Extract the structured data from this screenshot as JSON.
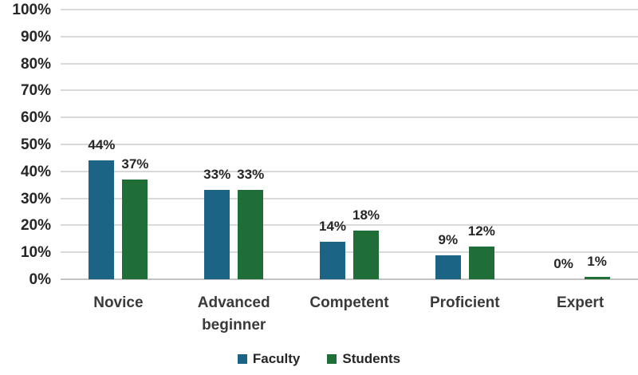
{
  "chart_data": {
    "type": "bar",
    "title": "",
    "xlabel": "",
    "ylabel": "",
    "categories": [
      "Novice",
      "Advanced beginner",
      "Competent",
      "Proficient",
      "Expert"
    ],
    "series": [
      {
        "name": "Faculty",
        "color": "#1b6486",
        "values": [
          44,
          33,
          14,
          9,
          0
        ],
        "labels": [
          "44%",
          "33%",
          "14%",
          "9%",
          "0%"
        ]
      },
      {
        "name": "Students",
        "color": "#1f6e38",
        "values": [
          37,
          33,
          18,
          12,
          1
        ],
        "labels": [
          "37%",
          "33%",
          "18%",
          "12%",
          "1%"
        ]
      }
    ],
    "y_axis": {
      "min": 0,
      "max": 100,
      "tick_step": 10,
      "tick_labels": [
        "0%",
        "10%",
        "20%",
        "30%",
        "40%",
        "50%",
        "60%",
        "70%",
        "80%",
        "90%",
        "100%"
      ]
    },
    "grid": true,
    "data_labels": true,
    "legend_position": "bottom"
  },
  "colors": {
    "faculty_bar": "#1b6486",
    "students_bar": "#1f6e38",
    "gridline": "#d9d9d9",
    "axis_line": "#c3c3c3",
    "text": "#262626",
    "background": "#ffffff"
  }
}
